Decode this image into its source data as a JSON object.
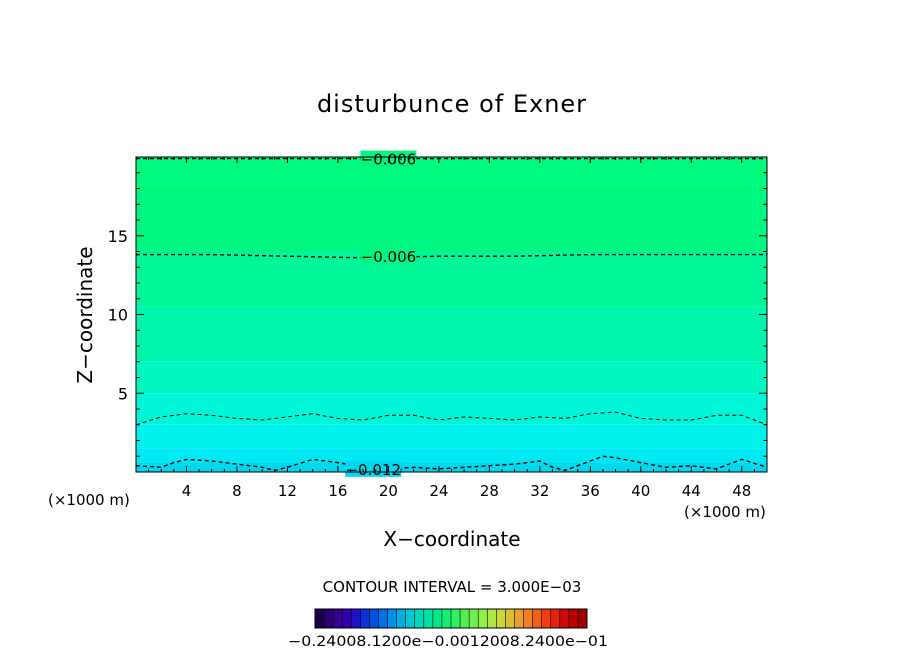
{
  "chart_data": {
    "type": "contour",
    "title": "disturbunce of Exner",
    "xlabel": "X−coordinate",
    "ylabel": "Z−coordinate",
    "x_units_left": "(×1000 m)",
    "x_units_right": "(×1000 m)",
    "xlim": [
      0,
      50
    ],
    "ylim": [
      0,
      20
    ],
    "x_ticks": [
      4,
      8,
      12,
      16,
      20,
      24,
      28,
      32,
      36,
      40,
      44,
      48
    ],
    "x_tick_labels": [
      "4",
      "8",
      "12",
      "16",
      "20",
      "24",
      "28",
      "32",
      "36",
      "40",
      "44",
      "48"
    ],
    "y_ticks": [
      5,
      10,
      15
    ],
    "y_tick_labels": [
      "5",
      "10",
      "15"
    ],
    "fill_bands": [
      {
        "z0": 18.0,
        "z1": 20.0,
        "color": "#00fa7e"
      },
      {
        "z0": 14.0,
        "z1": 18.0,
        "color": "#00f680"
      },
      {
        "z0": 10.5,
        "z1": 14.0,
        "color": "#00f696"
      },
      {
        "z0": 7.0,
        "z1": 10.5,
        "color": "#00f6ac"
      },
      {
        "z0": 5.0,
        "z1": 7.0,
        "color": "#00f8c0"
      },
      {
        "z0": 3.0,
        "z1": 5.0,
        "color": "#00f6d6"
      },
      {
        "z0": 1.5,
        "z1": 3.0,
        "color": "#00f2ec"
      },
      {
        "z0": 0.6,
        "z1": 1.5,
        "color": "#00e8f2"
      },
      {
        "z0": 0.0,
        "z1": 0.6,
        "color": "#00d8f0"
      }
    ],
    "contours": [
      {
        "label": "−0.006",
        "label_x": 20.0,
        "points": [
          [
            0,
            19.9
          ],
          [
            50,
            19.9
          ]
        ]
      },
      {
        "label": "−0.006",
        "label_x": 20.0,
        "points": [
          [
            0,
            13.8
          ],
          [
            6,
            13.8
          ],
          [
            12,
            13.7
          ],
          [
            18,
            13.6
          ],
          [
            24,
            13.7
          ],
          [
            30,
            13.7
          ],
          [
            36,
            13.8
          ],
          [
            42,
            13.8
          ],
          [
            50,
            13.8
          ]
        ]
      },
      {
        "label": "",
        "label_x": null,
        "points": [
          [
            0,
            3.0
          ],
          [
            2,
            3.5
          ],
          [
            4,
            3.7
          ],
          [
            6,
            3.6
          ],
          [
            8,
            3.4
          ],
          [
            10,
            3.3
          ],
          [
            12,
            3.5
          ],
          [
            14,
            3.7
          ],
          [
            16,
            3.4
          ],
          [
            18,
            3.3
          ],
          [
            20,
            3.6
          ],
          [
            22,
            3.6
          ],
          [
            24,
            3.3
          ],
          [
            26,
            3.5
          ],
          [
            28,
            3.4
          ],
          [
            30,
            3.3
          ],
          [
            32,
            3.5
          ],
          [
            34,
            3.4
          ],
          [
            36,
            3.7
          ],
          [
            38,
            3.8
          ],
          [
            40,
            3.4
          ],
          [
            42,
            3.3
          ],
          [
            44,
            3.3
          ],
          [
            46,
            3.6
          ],
          [
            48,
            3.6
          ],
          [
            50,
            3.0
          ]
        ]
      },
      {
        "label": "−0.012",
        "label_x": 18.8,
        "points": [
          [
            0,
            0.4
          ],
          [
            2,
            0.3
          ],
          [
            3,
            0.6
          ],
          [
            4,
            0.8
          ],
          [
            6,
            0.7
          ],
          [
            8,
            0.5
          ],
          [
            10,
            0.3
          ],
          [
            11,
            0.1
          ],
          [
            12,
            0.3
          ],
          [
            14,
            0.8
          ],
          [
            16,
            0.6
          ],
          [
            18,
            0.3
          ],
          [
            20,
            0.2
          ],
          [
            22,
            0.3
          ],
          [
            24,
            0.2
          ],
          [
            26,
            0.3
          ],
          [
            28,
            0.4
          ],
          [
            30,
            0.5
          ],
          [
            32,
            0.7
          ],
          [
            33,
            0.3
          ],
          [
            34,
            0.1
          ],
          [
            35,
            0.4
          ],
          [
            37,
            1.0
          ],
          [
            38,
            0.9
          ],
          [
            40,
            0.6
          ],
          [
            42,
            0.3
          ],
          [
            44,
            0.4
          ],
          [
            46,
            0.2
          ],
          [
            48,
            0.8
          ],
          [
            50,
            0.3
          ]
        ]
      }
    ],
    "contour_interval_text": "CONTOUR INTERVAL = 3.000E−03",
    "colorbar": {
      "colors": [
        "#1a004a",
        "#2a0070",
        "#38008e",
        "#3000b0",
        "#2010c8",
        "#1030d8",
        "#0050e0",
        "#0070e8",
        "#0090e8",
        "#00b0e0",
        "#00c8d0",
        "#00d8b8",
        "#00e0a0",
        "#00e888",
        "#10f070",
        "#30f060",
        "#50f050",
        "#70f050",
        "#90f048",
        "#b0e840",
        "#c8d838",
        "#d8c030",
        "#e8a028",
        "#f08020",
        "#f06018",
        "#f04010",
        "#e82010",
        "#d00808",
        "#b80000",
        "#a00000"
      ],
      "tick_labels": [
        "−0.240E−01",
        "−0.120E−01",
        "0.0",
        "0.120E−01",
        "0.240E−01"
      ],
      "overlapped_labels_text": "−0.24008.1200e−0.0012008.2400e−01"
    }
  }
}
